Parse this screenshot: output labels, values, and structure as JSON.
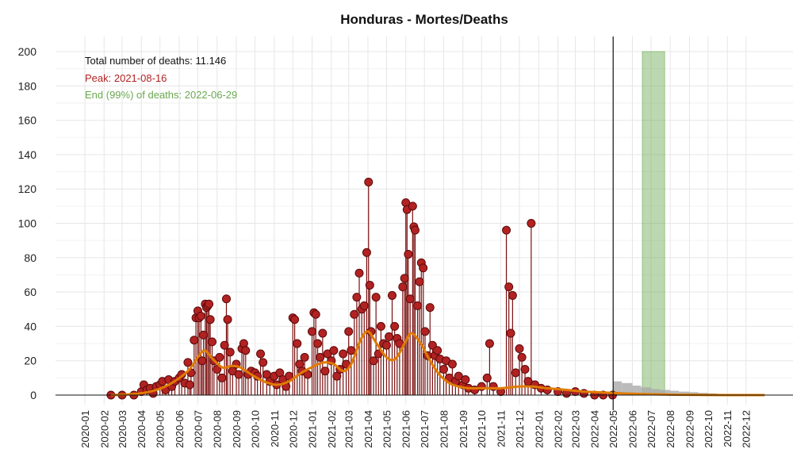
{
  "chart_data": {
    "type": "line",
    "title": "Honduras - Mortes/Deaths",
    "xlabel": "",
    "ylabel": "",
    "ylim": [
      0,
      200
    ],
    "yticks": [
      0,
      20,
      40,
      60,
      80,
      100,
      120,
      140,
      160,
      180,
      200
    ],
    "xlim": [
      "2020-01-01",
      "2023-01-01"
    ],
    "grid": true,
    "x_tick_labels": [
      "2020-01",
      "2020-02",
      "2020-03",
      "2020-04",
      "2020-05",
      "2020-06",
      "2020-07",
      "2020-08",
      "2020-09",
      "2020-10",
      "2020-11",
      "2020-12",
      "2021-01",
      "2021-02",
      "2021-03",
      "2021-04",
      "2021-05",
      "2021-06",
      "2021-07",
      "2021-08",
      "2021-09",
      "2021-10",
      "2021-11",
      "2021-12",
      "2022-01",
      "2022-02",
      "2022-03",
      "2022-04",
      "2022-05",
      "2022-06",
      "2022-07",
      "2022-08",
      "2022-09",
      "2022-10",
      "2022-11",
      "2022-12"
    ],
    "annotations": {
      "total": "Total number of deaths: 11.146",
      "peak": "Peak: 2021-08-16",
      "end": "End (99%) of deaths: 2022-06-29"
    },
    "observed_until": "2022-05-01",
    "end_band": {
      "start": "2022-06-17",
      "end": "2022-07-23"
    },
    "series": [
      {
        "kind": "daily_deaths",
        "color": "#b22222",
        "points": [
          [
            "2020-02-12",
            0
          ],
          [
            "2020-03-01",
            0
          ],
          [
            "2020-03-20",
            0
          ],
          [
            "2020-04-01",
            2
          ],
          [
            "2020-04-05",
            6
          ],
          [
            "2020-04-10",
            3
          ],
          [
            "2020-04-15",
            4
          ],
          [
            "2020-04-20",
            1
          ],
          [
            "2020-04-25",
            5
          ],
          [
            "2020-05-01",
            6
          ],
          [
            "2020-05-05",
            8
          ],
          [
            "2020-05-10",
            3
          ],
          [
            "2020-05-15",
            9
          ],
          [
            "2020-05-20",
            5
          ],
          [
            "2020-05-25",
            8
          ],
          [
            "2020-06-01",
            10
          ],
          [
            "2020-06-05",
            12
          ],
          [
            "2020-06-10",
            7
          ],
          [
            "2020-06-15",
            19
          ],
          [
            "2020-06-18",
            6
          ],
          [
            "2020-06-20",
            13
          ],
          [
            "2020-06-25",
            32
          ],
          [
            "2020-06-28",
            45
          ],
          [
            "2020-07-01",
            49
          ],
          [
            "2020-07-03",
            45
          ],
          [
            "2020-07-06",
            46
          ],
          [
            "2020-07-08",
            20
          ],
          [
            "2020-07-10",
            35
          ],
          [
            "2020-07-13",
            53
          ],
          [
            "2020-07-15",
            51
          ],
          [
            "2020-07-17",
            52
          ],
          [
            "2020-07-19",
            53
          ],
          [
            "2020-07-21",
            44
          ],
          [
            "2020-07-24",
            31
          ],
          [
            "2020-07-27",
            20
          ],
          [
            "2020-08-01",
            15
          ],
          [
            "2020-08-05",
            22
          ],
          [
            "2020-08-09",
            10
          ],
          [
            "2020-08-13",
            29
          ],
          [
            "2020-08-16",
            56
          ],
          [
            "2020-08-18",
            44
          ],
          [
            "2020-08-22",
            25
          ],
          [
            "2020-08-26",
            14
          ],
          [
            "2020-09-01",
            18
          ],
          [
            "2020-09-05",
            12
          ],
          [
            "2020-09-10",
            27
          ],
          [
            "2020-09-13",
            30
          ],
          [
            "2020-09-16",
            26
          ],
          [
            "2020-09-20",
            12
          ],
          [
            "2020-09-25",
            14
          ],
          [
            "2020-10-01",
            13
          ],
          [
            "2020-10-05",
            11
          ],
          [
            "2020-10-10",
            24
          ],
          [
            "2020-10-14",
            19
          ],
          [
            "2020-10-20",
            12
          ],
          [
            "2020-10-25",
            8
          ],
          [
            "2020-11-01",
            11
          ],
          [
            "2020-11-05",
            6
          ],
          [
            "2020-11-10",
            13
          ],
          [
            "2020-11-15",
            9
          ],
          [
            "2020-11-20",
            5
          ],
          [
            "2020-11-25",
            11
          ],
          [
            "2020-12-01",
            45
          ],
          [
            "2020-12-04",
            44
          ],
          [
            "2020-12-08",
            30
          ],
          [
            "2020-12-12",
            18
          ],
          [
            "2020-12-16",
            14
          ],
          [
            "2020-12-20",
            22
          ],
          [
            "2020-12-25",
            12
          ],
          [
            "2021-01-01",
            37
          ],
          [
            "2021-01-04",
            48
          ],
          [
            "2021-01-07",
            47
          ],
          [
            "2021-01-10",
            30
          ],
          [
            "2021-01-14",
            22
          ],
          [
            "2021-01-18",
            36
          ],
          [
            "2021-01-22",
            14
          ],
          [
            "2021-01-26",
            24
          ],
          [
            "2021-02-01",
            20
          ],
          [
            "2021-02-05",
            26
          ],
          [
            "2021-02-10",
            11
          ],
          [
            "2021-02-15",
            15
          ],
          [
            "2021-02-20",
            24
          ],
          [
            "2021-02-25",
            18
          ],
          [
            "2021-03-01",
            37
          ],
          [
            "2021-03-05",
            26
          ],
          [
            "2021-03-10",
            47
          ],
          [
            "2021-03-14",
            57
          ],
          [
            "2021-03-18",
            71
          ],
          [
            "2021-03-22",
            50
          ],
          [
            "2021-03-26",
            52
          ],
          [
            "2021-03-30",
            83
          ],
          [
            "2021-04-02",
            124
          ],
          [
            "2021-04-04",
            64
          ],
          [
            "2021-04-06",
            37
          ],
          [
            "2021-04-10",
            20
          ],
          [
            "2021-04-14",
            57
          ],
          [
            "2021-04-18",
            24
          ],
          [
            "2021-04-22",
            40
          ],
          [
            "2021-04-26",
            30
          ],
          [
            "2021-05-01",
            29
          ],
          [
            "2021-05-05",
            34
          ],
          [
            "2021-05-10",
            58
          ],
          [
            "2021-05-14",
            40
          ],
          [
            "2021-05-18",
            33
          ],
          [
            "2021-05-22",
            30
          ],
          [
            "2021-05-27",
            63
          ],
          [
            "2021-05-30",
            68
          ],
          [
            "2021-06-01",
            112
          ],
          [
            "2021-06-03",
            108
          ],
          [
            "2021-06-05",
            82
          ],
          [
            "2021-06-08",
            56
          ],
          [
            "2021-06-12",
            110
          ],
          [
            "2021-06-14",
            98
          ],
          [
            "2021-06-16",
            96
          ],
          [
            "2021-06-20",
            52
          ],
          [
            "2021-06-23",
            66
          ],
          [
            "2021-06-26",
            77
          ],
          [
            "2021-06-29",
            74
          ],
          [
            "2021-07-02",
            37
          ],
          [
            "2021-07-06",
            23
          ],
          [
            "2021-07-10",
            51
          ],
          [
            "2021-07-14",
            29
          ],
          [
            "2021-07-18",
            23
          ],
          [
            "2021-07-22",
            26
          ],
          [
            "2021-07-26",
            21
          ],
          [
            "2021-08-01",
            15
          ],
          [
            "2021-08-05",
            20
          ],
          [
            "2021-08-10",
            10
          ],
          [
            "2021-08-15",
            18
          ],
          [
            "2021-08-20",
            8
          ],
          [
            "2021-08-25",
            11
          ],
          [
            "2021-09-01",
            6
          ],
          [
            "2021-09-05",
            9
          ],
          [
            "2021-09-10",
            4
          ],
          [
            "2021-09-20",
            3
          ],
          [
            "2021-10-01",
            5
          ],
          [
            "2021-10-10",
            10
          ],
          [
            "2021-10-14",
            30
          ],
          [
            "2021-10-20",
            5
          ],
          [
            "2021-11-01",
            2
          ],
          [
            "2021-11-10",
            96
          ],
          [
            "2021-11-14",
            63
          ],
          [
            "2021-11-17",
            36
          ],
          [
            "2021-11-20",
            58
          ],
          [
            "2021-11-25",
            13
          ],
          [
            "2021-12-01",
            27
          ],
          [
            "2021-12-05",
            22
          ],
          [
            "2021-12-10",
            15
          ],
          [
            "2021-12-15",
            8
          ],
          [
            "2021-12-20",
            100
          ],
          [
            "2021-12-26",
            6
          ],
          [
            "2022-01-05",
            4
          ],
          [
            "2022-01-15",
            3
          ],
          [
            "2022-02-01",
            2
          ],
          [
            "2022-02-15",
            1
          ],
          [
            "2022-03-01",
            2
          ],
          [
            "2022-03-15",
            1
          ],
          [
            "2022-04-01",
            0
          ],
          [
            "2022-04-15",
            0
          ],
          [
            "2022-04-30",
            0
          ]
        ]
      },
      {
        "kind": "smoothed_curve",
        "color": "#e07b00",
        "points": [
          [
            "2020-02-12",
            0
          ],
          [
            "2020-03-15",
            0.5
          ],
          [
            "2020-04-15",
            2
          ],
          [
            "2020-05-15",
            6
          ],
          [
            "2020-06-15",
            14
          ],
          [
            "2020-07-01",
            22
          ],
          [
            "2020-07-12",
            26
          ],
          [
            "2020-07-25",
            21
          ],
          [
            "2020-08-10",
            16
          ],
          [
            "2020-08-25",
            17
          ],
          [
            "2020-09-08",
            16
          ],
          [
            "2020-09-25",
            12
          ],
          [
            "2020-10-15",
            8
          ],
          [
            "2020-11-05",
            6
          ],
          [
            "2020-11-25",
            8
          ],
          [
            "2020-12-15",
            13
          ],
          [
            "2021-01-05",
            17
          ],
          [
            "2021-01-20",
            19
          ],
          [
            "2021-02-05",
            18
          ],
          [
            "2021-02-20",
            14
          ],
          [
            "2021-03-05",
            18
          ],
          [
            "2021-03-20",
            32
          ],
          [
            "2021-04-01",
            37
          ],
          [
            "2021-04-15",
            30
          ],
          [
            "2021-05-01",
            22
          ],
          [
            "2021-05-15",
            21
          ],
          [
            "2021-05-30",
            30
          ],
          [
            "2021-06-10",
            36
          ],
          [
            "2021-06-25",
            30
          ],
          [
            "2021-07-10",
            20
          ],
          [
            "2021-07-25",
            12
          ],
          [
            "2021-08-10",
            7
          ],
          [
            "2021-08-25",
            5
          ],
          [
            "2021-09-10",
            4
          ],
          [
            "2021-10-01",
            4
          ],
          [
            "2021-11-01",
            4
          ],
          [
            "2021-12-01",
            5
          ],
          [
            "2021-12-20",
            5
          ],
          [
            "2022-01-15",
            4
          ],
          [
            "2022-02-15",
            3
          ],
          [
            "2022-03-15",
            2
          ],
          [
            "2022-04-15",
            1.5
          ],
          [
            "2022-05-15",
            1
          ],
          [
            "2022-06-15",
            0.6
          ],
          [
            "2022-07-15",
            0.4
          ],
          [
            "2022-08-15",
            0.2
          ],
          [
            "2022-09-15",
            0.1
          ],
          [
            "2022-11-01",
            0
          ],
          [
            "2022-12-31",
            0
          ]
        ]
      },
      {
        "kind": "projection_bars",
        "color": "#aaaaaa",
        "points": [
          [
            "2022-05-01",
            8
          ],
          [
            "2022-05-15",
            7
          ],
          [
            "2022-06-01",
            5.5
          ],
          [
            "2022-06-15",
            4.5
          ],
          [
            "2022-07-01",
            3.5
          ],
          [
            "2022-07-15",
            3
          ],
          [
            "2022-08-01",
            2.5
          ],
          [
            "2022-08-15",
            2
          ],
          [
            "2022-09-01",
            1.7
          ],
          [
            "2022-09-15",
            1.3
          ],
          [
            "2022-10-01",
            1
          ],
          [
            "2022-10-15",
            0.6
          ],
          [
            "2022-11-01",
            0.3
          ],
          [
            "2022-11-15",
            0.1
          ],
          [
            "2022-12-01",
            0
          ]
        ]
      }
    ]
  }
}
